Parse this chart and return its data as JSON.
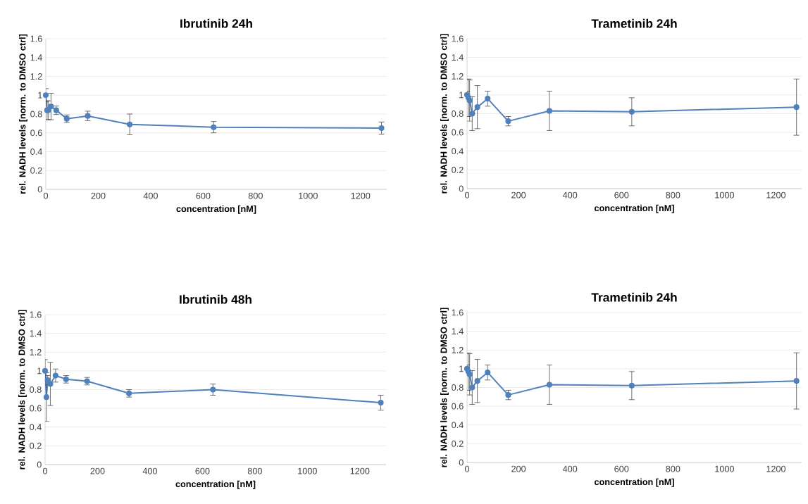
{
  "chart_data": [
    {
      "type": "line",
      "title": "Ibrutinib 24h",
      "xlabel": "concentration [nM]",
      "ylabel": "rel. NADH levels [norm. to DMSO ctrl]",
      "x": [
        0,
        5,
        10,
        20,
        40,
        80,
        160,
        320,
        640,
        1280
      ],
      "series": [
        {
          "color": "#4f81bd",
          "values": [
            1.0,
            0.84,
            0.84,
            0.88,
            0.84,
            0.75,
            0.78,
            0.69,
            0.66,
            0.65
          ],
          "errors": [
            0.07,
            0.1,
            0.1,
            0.14,
            0.045,
            0.04,
            0.05,
            0.11,
            0.06,
            0.065
          ]
        }
      ],
      "xlim": [
        0,
        1300
      ],
      "ylim": [
        0,
        1.6
      ],
      "xticks": [
        0,
        200,
        400,
        600,
        800,
        1000,
        1200
      ],
      "yticks": [
        0,
        0.2,
        0.4,
        0.6,
        0.8,
        1,
        1.2,
        1.4,
        1.6
      ],
      "grid": "y",
      "marker": "circle"
    },
    {
      "type": "line",
      "title": "Trametinib 24h",
      "xlabel": "concentration [nM]",
      "ylabel": "rel. NADH levels [norm. to DMSO ctrl]",
      "x": [
        0,
        5,
        10,
        20,
        40,
        80,
        160,
        320,
        640,
        1280
      ],
      "series": [
        {
          "color": "#4f81bd",
          "values": [
            1.0,
            0.97,
            0.94,
            0.8,
            0.87,
            0.96,
            0.72,
            0.83,
            0.82,
            0.87
          ],
          "errors": [
            0.04,
            0.2,
            0.22,
            0.18,
            0.23,
            0.08,
            0.05,
            0.21,
            0.15,
            0.3
          ]
        }
      ],
      "xlim": [
        0,
        1300
      ],
      "ylim": [
        0,
        1.6
      ],
      "xticks": [
        0,
        200,
        400,
        600,
        800,
        1000,
        1200
      ],
      "yticks": [
        0,
        0.2,
        0.4,
        0.6,
        0.8,
        1,
        1.2,
        1.4,
        1.6
      ],
      "grid": "y",
      "marker": "circle"
    },
    {
      "type": "line",
      "title": "Ibrutinib 48h",
      "xlabel": "concentration [nM]",
      "ylabel": "rel. NADH levels [norm. to DMSO ctrl]",
      "x": [
        0,
        5,
        10,
        20,
        40,
        80,
        160,
        320,
        640,
        1280
      ],
      "series": [
        {
          "color": "#4f81bd",
          "values": [
            1.0,
            0.72,
            0.9,
            0.86,
            0.95,
            0.91,
            0.89,
            0.76,
            0.8,
            0.66
          ],
          "errors": [
            0.12,
            0.26,
            0.05,
            0.23,
            0.07,
            0.04,
            0.04,
            0.04,
            0.06,
            0.08
          ]
        }
      ],
      "xlim": [
        0,
        1300
      ],
      "ylim": [
        0,
        1.6
      ],
      "xticks": [
        0,
        200,
        400,
        600,
        800,
        1000,
        1200
      ],
      "yticks": [
        0,
        0.2,
        0.4,
        0.6,
        0.8,
        1,
        1.2,
        1.4,
        1.6
      ],
      "grid": "y",
      "marker": "circle"
    },
    {
      "type": "line",
      "title": "Trametinib 24h",
      "xlabel": "concentration [nM]",
      "ylabel": "rel. NADH levels [norm. to DMSO ctrl]",
      "x": [
        0,
        5,
        10,
        20,
        40,
        80,
        160,
        320,
        640,
        1280
      ],
      "series": [
        {
          "color": "#4f81bd",
          "values": [
            1.0,
            0.97,
            0.94,
            0.8,
            0.87,
            0.96,
            0.72,
            0.83,
            0.82,
            0.87
          ],
          "errors": [
            0.04,
            0.2,
            0.22,
            0.18,
            0.23,
            0.08,
            0.05,
            0.21,
            0.15,
            0.3
          ]
        }
      ],
      "xlim": [
        0,
        1300
      ],
      "ylim": [
        0,
        1.6
      ],
      "xticks": [
        0,
        200,
        400,
        600,
        800,
        1000,
        1200
      ],
      "yticks": [
        0,
        0.2,
        0.4,
        0.6,
        0.8,
        1,
        1.2,
        1.4,
        1.6
      ],
      "grid": "y",
      "marker": "circle"
    }
  ]
}
